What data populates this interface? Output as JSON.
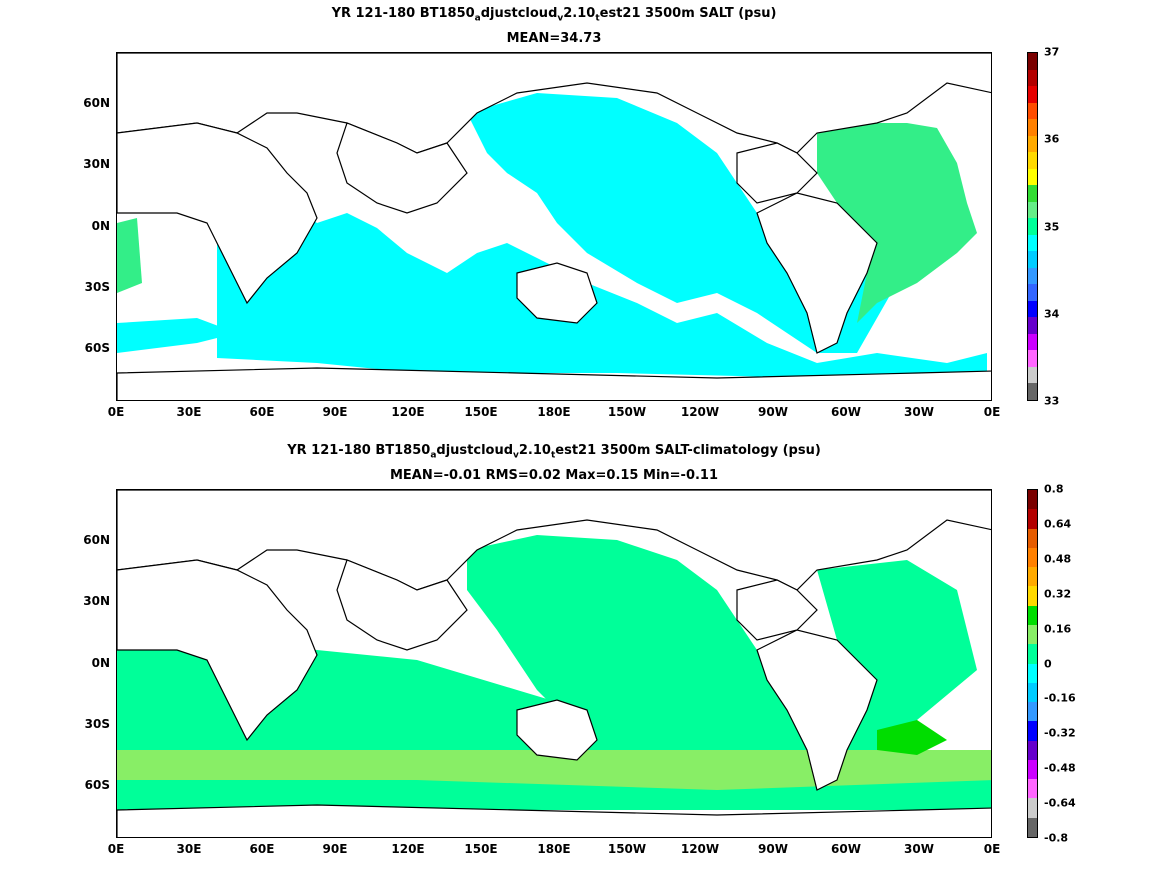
{
  "top": {
    "title_pre": "YR 121-180 BT1850",
    "sub1": "a",
    "title_mid1": "djustcloud",
    "sub2": "v",
    "title_mid2": "2.10",
    "sub3": "t",
    "title_post": "est21 3500m SALT (psu)",
    "subtitle": "MEAN=34.73",
    "colorbar": {
      "labels": [
        "37",
        "36",
        "35",
        "34",
        "33"
      ],
      "colors": [
        "#7a0000",
        "#b30000",
        "#e60000",
        "#ff4d00",
        "#ff8000",
        "#ffaa00",
        "#ffd900",
        "#ffff00",
        "#33dd33",
        "#66ee88",
        "#00ff99",
        "#00ffff",
        "#00ccff",
        "#3399ff",
        "#3366ff",
        "#0000ff",
        "#6600cc",
        "#cc00ff",
        "#ff66ff",
        "#cccccc",
        "#666666"
      ]
    }
  },
  "bottom": {
    "title_pre": "YR 121-180 BT1850",
    "sub1": "a",
    "title_mid1": "djustcloud",
    "sub2": "v",
    "title_mid2": "2.10",
    "sub3": "t",
    "title_post": "est21 3500m SALT-climatology (psu)",
    "subtitle": "MEAN=-0.01   RMS=0.02   Max=0.15   Min=-0.11",
    "colorbar": {
      "labels": [
        "0.8",
        "0.64",
        "0.48",
        "0.32",
        "0.16",
        "0",
        "-0.16",
        "-0.32",
        "-0.48",
        "-0.64",
        "-0.8"
      ],
      "colors": [
        "#7a0000",
        "#b30000",
        "#e65c00",
        "#ff8000",
        "#ffaa00",
        "#ffd900",
        "#00dd00",
        "#88ee66",
        "#00ff99",
        "#00ffff",
        "#00ccff",
        "#3399ff",
        "#0000ff",
        "#6600cc",
        "#cc00ff",
        "#ff66ff",
        "#cccccc",
        "#666666"
      ]
    }
  },
  "x_ticks": [
    "0E",
    "30E",
    "60E",
    "90E",
    "120E",
    "150E",
    "180E",
    "150W",
    "120W",
    "90W",
    "60W",
    "30W",
    "0E"
  ],
  "y_ticks": [
    "60N",
    "30N",
    "0N",
    "30S",
    "60S"
  ],
  "colors": {
    "land": "#ffffff",
    "coast": "#000000",
    "top_main": "#00ffff",
    "top_atlantic": "#33ee88",
    "bottom_main": "#00ff99",
    "bottom_light": "#88ee66",
    "bottom_bright": "#00dd00"
  }
}
